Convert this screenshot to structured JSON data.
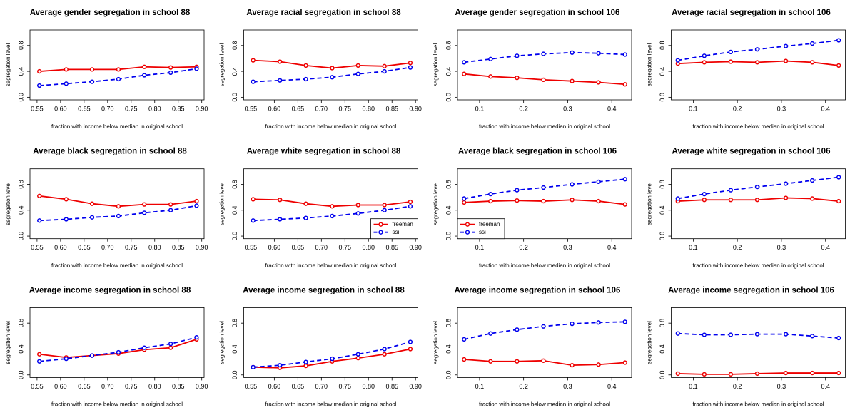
{
  "chart_data": [
    {
      "type": "line",
      "title": "Average gender segregation in school 88",
      "xlabel": "fraction with income below median in original school",
      "ylabel": "segregation level",
      "x": [
        0.555,
        0.612,
        0.667,
        0.723,
        0.778,
        0.834,
        0.889
      ],
      "xlim": [
        0.535,
        0.905
      ],
      "xticks": [
        0.55,
        {
          "value": 0.6,
          "label": "0.60"
        },
        0.65,
        {
          "value": 0.7,
          "label": "0.70"
        },
        0.75,
        {
          "value": 0.8,
          "label": "0.80"
        },
        0.85,
        {
          "value": 0.9,
          "label": "0.90"
        }
      ],
      "ylim": [
        -0.04,
        1.04
      ],
      "yticks": [
        {
          "value": 0,
          "label": "0.0"
        },
        0.4,
        0.8
      ],
      "series": [
        {
          "color": "#ee0000",
          "linestyle": "solid",
          "values": [
            0.4,
            0.43,
            0.43,
            0.43,
            0.47,
            0.46,
            0.47
          ]
        },
        {
          "color": "#0000ee",
          "linestyle": "dashed",
          "values": [
            0.18,
            0.21,
            0.24,
            0.28,
            0.34,
            0.38,
            0.44
          ]
        }
      ]
    },
    {
      "type": "line",
      "title": "Average racial segregation in school 88",
      "xlabel": "fraction with income below median in original school",
      "ylabel": "segregation level",
      "x": [
        0.555,
        0.612,
        0.667,
        0.723,
        0.778,
        0.834,
        0.889
      ],
      "xlim": [
        0.535,
        0.905
      ],
      "xticks": [
        0.55,
        {
          "value": 0.6,
          "label": "0.60"
        },
        0.65,
        {
          "value": 0.7,
          "label": "0.70"
        },
        0.75,
        {
          "value": 0.8,
          "label": "0.80"
        },
        0.85,
        {
          "value": 0.9,
          "label": "0.90"
        }
      ],
      "ylim": [
        -0.04,
        1.04
      ],
      "yticks": [
        {
          "value": 0,
          "label": "0.0"
        },
        0.4,
        0.8
      ],
      "series": [
        {
          "color": "#ee0000",
          "linestyle": "solid",
          "values": [
            0.57,
            0.55,
            0.49,
            0.45,
            0.49,
            0.48,
            0.53
          ]
        },
        {
          "color": "#0000ee",
          "linestyle": "dashed",
          "values": [
            0.24,
            0.26,
            0.28,
            0.31,
            0.36,
            0.4,
            0.46
          ]
        }
      ]
    },
    {
      "type": "line",
      "title": "Average gender segregation in school 106",
      "xlabel": "fraction with income below median in original school",
      "ylabel": "segregation level",
      "x": [
        0.065,
        0.125,
        0.185,
        0.245,
        0.31,
        0.37,
        0.43
      ],
      "xlim": [
        0.05,
        0.445
      ],
      "xticks": [
        0.1,
        0.2,
        0.3,
        0.4
      ],
      "ylim": [
        -0.04,
        1.04
      ],
      "yticks": [
        {
          "value": 0,
          "label": "0.0"
        },
        0.4,
        0.8
      ],
      "series": [
        {
          "color": "#ee0000",
          "linestyle": "solid",
          "values": [
            0.36,
            0.32,
            0.3,
            0.27,
            0.25,
            0.23,
            0.2
          ]
        },
        {
          "color": "#0000ee",
          "linestyle": "dashed",
          "values": [
            0.54,
            0.59,
            0.64,
            0.67,
            0.69,
            0.68,
            0.66
          ]
        }
      ]
    },
    {
      "type": "line",
      "title": "Average racial segregation in school 106",
      "xlabel": "fraction with income below median in original school",
      "ylabel": "segregation level",
      "x": [
        0.065,
        0.125,
        0.185,
        0.245,
        0.31,
        0.37,
        0.43
      ],
      "xlim": [
        0.05,
        0.445
      ],
      "xticks": [
        0.1,
        0.2,
        0.3,
        0.4
      ],
      "ylim": [
        -0.04,
        1.04
      ],
      "yticks": [
        {
          "value": 0,
          "label": "0.0"
        },
        0.4,
        0.8
      ],
      "series": [
        {
          "color": "#ee0000",
          "linestyle": "solid",
          "values": [
            0.52,
            0.54,
            0.55,
            0.54,
            0.56,
            0.54,
            0.49
          ]
        },
        {
          "color": "#0000ee",
          "linestyle": "dashed",
          "values": [
            0.57,
            0.64,
            0.7,
            0.74,
            0.79,
            0.83,
            0.88
          ]
        }
      ]
    },
    {
      "type": "line",
      "title": "Average black segregation in school 88",
      "xlabel": "fraction with income below median in original school",
      "ylabel": "segregation level",
      "x": [
        0.555,
        0.612,
        0.667,
        0.723,
        0.778,
        0.834,
        0.889
      ],
      "xlim": [
        0.535,
        0.905
      ],
      "xticks": [
        0.55,
        {
          "value": 0.6,
          "label": "0.60"
        },
        0.65,
        {
          "value": 0.7,
          "label": "0.70"
        },
        0.75,
        {
          "value": 0.8,
          "label": "0.80"
        },
        0.85,
        {
          "value": 0.9,
          "label": "0.90"
        }
      ],
      "ylim": [
        -0.04,
        1.04
      ],
      "yticks": [
        {
          "value": 0,
          "label": "0.0"
        },
        0.4,
        0.8
      ],
      "series": [
        {
          "color": "#ee0000",
          "linestyle": "solid",
          "values": [
            0.62,
            0.57,
            0.5,
            0.46,
            0.49,
            0.49,
            0.54
          ]
        },
        {
          "color": "#0000ee",
          "linestyle": "dashed",
          "values": [
            0.24,
            0.26,
            0.29,
            0.31,
            0.36,
            0.4,
            0.47
          ]
        }
      ]
    },
    {
      "type": "line",
      "title": "Average white segregation in school 88",
      "xlabel": "fraction with income below median in original school",
      "ylabel": "segregation level",
      "x": [
        0.555,
        0.612,
        0.667,
        0.723,
        0.778,
        0.834,
        0.889
      ],
      "xlim": [
        0.535,
        0.905
      ],
      "xticks": [
        0.55,
        {
          "value": 0.6,
          "label": "0.60"
        },
        0.65,
        {
          "value": 0.7,
          "label": "0.70"
        },
        0.75,
        {
          "value": 0.8,
          "label": "0.80"
        },
        0.85,
        {
          "value": 0.9,
          "label": "0.90"
        }
      ],
      "ylim": [
        -0.04,
        1.04
      ],
      "yticks": [
        {
          "value": 0,
          "label": "0.0"
        },
        0.4,
        0.8
      ],
      "legend": "bottomright",
      "series": [
        {
          "name": "freeman",
          "color": "#ee0000",
          "linestyle": "solid",
          "values": [
            0.57,
            0.56,
            0.5,
            0.46,
            0.48,
            0.48,
            0.53
          ]
        },
        {
          "name": "ssi",
          "color": "#0000ee",
          "linestyle": "dashed",
          "values": [
            0.24,
            0.26,
            0.28,
            0.31,
            0.35,
            0.4,
            0.46
          ]
        }
      ]
    },
    {
      "type": "line",
      "title": "Average black segregation in school 106",
      "xlabel": "fraction with income below median in original school",
      "ylabel": "segregation level",
      "x": [
        0.065,
        0.125,
        0.185,
        0.245,
        0.31,
        0.37,
        0.43
      ],
      "xlim": [
        0.05,
        0.445
      ],
      "xticks": [
        0.1,
        0.2,
        0.3,
        0.4
      ],
      "ylim": [
        -0.04,
        1.04
      ],
      "yticks": [
        {
          "value": 0,
          "label": "0.0"
        },
        0.4,
        0.8
      ],
      "legend": "bottomleft",
      "series": [
        {
          "name": "freeman",
          "color": "#ee0000",
          "linestyle": "solid",
          "values": [
            0.52,
            0.54,
            0.55,
            0.54,
            0.56,
            0.54,
            0.49
          ]
        },
        {
          "name": "ssi",
          "color": "#0000ee",
          "linestyle": "dashed",
          "values": [
            0.58,
            0.65,
            0.71,
            0.75,
            0.8,
            0.84,
            0.88
          ]
        }
      ]
    },
    {
      "type": "line",
      "title": "Average white segregation in school 106",
      "xlabel": "fraction with income below median in original school",
      "ylabel": "segregation level",
      "x": [
        0.065,
        0.125,
        0.185,
        0.245,
        0.31,
        0.37,
        0.43
      ],
      "xlim": [
        0.05,
        0.445
      ],
      "xticks": [
        0.1,
        0.2,
        0.3,
        0.4
      ],
      "ylim": [
        -0.04,
        1.04
      ],
      "yticks": [
        {
          "value": 0,
          "label": "0.0"
        },
        0.4,
        0.8
      ],
      "series": [
        {
          "color": "#ee0000",
          "linestyle": "solid",
          "values": [
            0.54,
            0.56,
            0.56,
            0.56,
            0.59,
            0.58,
            0.54
          ]
        },
        {
          "color": "#0000ee",
          "linestyle": "dashed",
          "values": [
            0.58,
            0.65,
            0.71,
            0.76,
            0.81,
            0.86,
            0.91
          ]
        }
      ]
    },
    {
      "type": "line",
      "title": "Average income segregation in school 88",
      "xlabel": "fraction with income below median in original school",
      "ylabel": "segregation level",
      "x": [
        0.555,
        0.612,
        0.667,
        0.723,
        0.778,
        0.834,
        0.889
      ],
      "xlim": [
        0.535,
        0.905
      ],
      "xticks": [
        0.55,
        {
          "value": 0.6,
          "label": "0.60"
        },
        0.65,
        {
          "value": 0.7,
          "label": "0.70"
        },
        0.75,
        {
          "value": 0.8,
          "label": "0.80"
        },
        0.85,
        {
          "value": 0.9,
          "label": "0.90"
        }
      ],
      "ylim": [
        -0.04,
        1.04
      ],
      "yticks": [
        {
          "value": 0,
          "label": "0.0"
        },
        0.4,
        0.8
      ],
      "series": [
        {
          "color": "#ee0000",
          "linestyle": "solid",
          "values": [
            0.32,
            0.27,
            0.3,
            0.33,
            0.39,
            0.42,
            0.55
          ]
        },
        {
          "color": "#0000ee",
          "linestyle": "dashed",
          "values": [
            0.21,
            0.25,
            0.3,
            0.35,
            0.42,
            0.48,
            0.58
          ]
        }
      ]
    },
    {
      "type": "line",
      "title": "Average income segregation in school 88",
      "xlabel": "fraction with income below median in original school",
      "ylabel": "segregation level",
      "x": [
        0.555,
        0.612,
        0.667,
        0.723,
        0.778,
        0.834,
        0.889
      ],
      "xlim": [
        0.535,
        0.905
      ],
      "xticks": [
        0.55,
        {
          "value": 0.6,
          "label": "0.60"
        },
        0.65,
        {
          "value": 0.7,
          "label": "0.70"
        },
        0.75,
        {
          "value": 0.8,
          "label": "0.80"
        },
        0.85,
        {
          "value": 0.9,
          "label": "0.90"
        }
      ],
      "ylim": [
        -0.04,
        1.04
      ],
      "yticks": [
        {
          "value": 0,
          "label": "0.0"
        },
        0.4,
        0.8
      ],
      "series": [
        {
          "color": "#ee0000",
          "linestyle": "solid",
          "values": [
            0.12,
            0.11,
            0.14,
            0.21,
            0.26,
            0.32,
            0.4
          ]
        },
        {
          "color": "#0000ee",
          "linestyle": "dashed",
          "values": [
            0.12,
            0.15,
            0.2,
            0.25,
            0.32,
            0.4,
            0.51
          ]
        }
      ]
    },
    {
      "type": "line",
      "title": "Average income segregation in school 106",
      "xlabel": "fraction with income below median in original school",
      "ylabel": "segregation level",
      "x": [
        0.065,
        0.125,
        0.185,
        0.245,
        0.31,
        0.37,
        0.43
      ],
      "xlim": [
        0.05,
        0.445
      ],
      "xticks": [
        0.1,
        0.2,
        0.3,
        0.4
      ],
      "ylim": [
        -0.04,
        1.04
      ],
      "yticks": [
        {
          "value": 0,
          "label": "0.0"
        },
        0.4,
        0.8
      ],
      "series": [
        {
          "color": "#ee0000",
          "linestyle": "solid",
          "values": [
            0.24,
            0.21,
            0.21,
            0.22,
            0.15,
            0.16,
            0.19
          ]
        },
        {
          "color": "#0000ee",
          "linestyle": "dashed",
          "values": [
            0.55,
            0.64,
            0.7,
            0.75,
            0.79,
            0.81,
            0.82
          ]
        }
      ]
    },
    {
      "type": "line",
      "title": "Average income segregation in school 106",
      "xlabel": "fraction with income below median in original school",
      "ylabel": "segregation level",
      "x": [
        0.065,
        0.125,
        0.185,
        0.245,
        0.31,
        0.37,
        0.43
      ],
      "xlim": [
        0.05,
        0.445
      ],
      "xticks": [
        0.1,
        0.2,
        0.3,
        0.4
      ],
      "ylim": [
        -0.04,
        1.04
      ],
      "yticks": [
        {
          "value": 0,
          "label": "0.0"
        },
        0.4,
        0.8
      ],
      "series": [
        {
          "color": "#ee0000",
          "linestyle": "solid",
          "values": [
            0.02,
            0.01,
            0.01,
            0.02,
            0.03,
            0.03,
            0.03
          ]
        },
        {
          "color": "#0000ee",
          "linestyle": "dashed",
          "values": [
            0.64,
            0.62,
            0.62,
            0.63,
            0.63,
            0.6,
            0.57
          ]
        }
      ]
    }
  ]
}
